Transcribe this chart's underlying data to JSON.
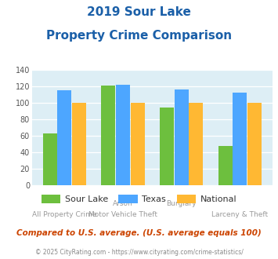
{
  "title_line1": "2019 Sour Lake",
  "title_line2": "Property Crime Comparison",
  "sour_lake": [
    63,
    121,
    94,
    48
  ],
  "texas": [
    115,
    122,
    116,
    112
  ],
  "national": [
    100,
    100,
    100,
    100
  ],
  "sour_lake_color": "#6dbf3e",
  "texas_color": "#4da6ff",
  "national_color": "#ffb833",
  "ylim": [
    0,
    140
  ],
  "yticks": [
    0,
    20,
    40,
    60,
    80,
    100,
    120,
    140
  ],
  "bg_color": "#ddeef5",
  "fig_bg": "#ffffff",
  "title_color": "#1a5fa8",
  "top_labels": [
    "",
    "Arson",
    "Burglary",
    ""
  ],
  "bot_labels": [
    "All Property Crime",
    "Motor Vehicle Theft",
    "",
    "Larceny & Theft"
  ],
  "legend_labels": [
    "Sour Lake",
    "Texas",
    "National"
  ],
  "footer_text": "Compared to U.S. average. (U.S. average equals 100)",
  "footer_color": "#cc4400",
  "credit_text": "© 2025 CityRating.com - https://www.cityrating.com/crime-statistics/",
  "credit_color": "#888888",
  "label_color": "#999999"
}
